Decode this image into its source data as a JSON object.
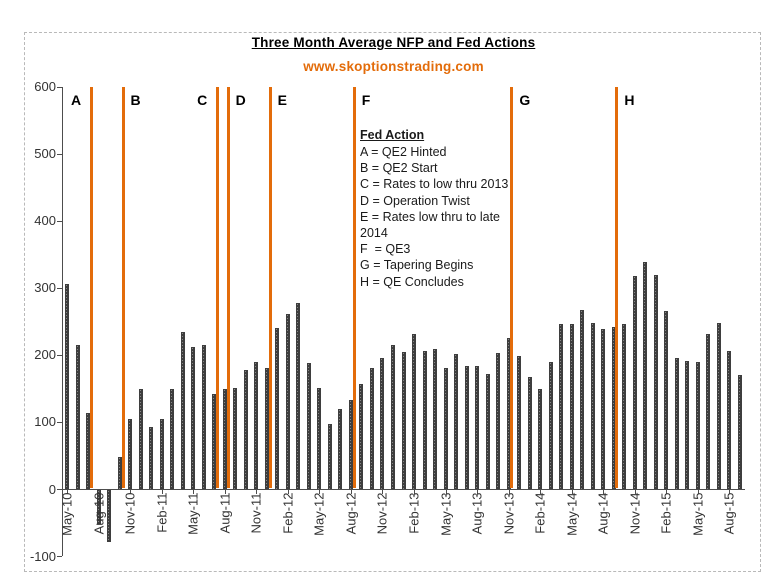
{
  "title": "Three Month Average NFP and Fed Actions",
  "subtitle": "www.skoptionstrading.com",
  "colors": {
    "accent_orange": "#e36c0a",
    "bar_fill": "#3e3e3e",
    "axis": "#4d4d4d",
    "frame_border": "#b9b9b9",
    "text": "#333333"
  },
  "chart_data": {
    "type": "bar",
    "title": "Three Month Average NFP and Fed Actions",
    "subtitle": "www.skoptionstrading.com",
    "xlabel": "",
    "ylabel": "",
    "ylim": [
      -100,
      600
    ],
    "yticks": [
      600,
      500,
      400,
      300,
      200,
      100,
      0,
      -100
    ],
    "grid": false,
    "x_label_every": 3,
    "x": [
      "May-10",
      "Jun-10",
      "Jul-10",
      "Aug-10",
      "Sep-10",
      "Oct-10",
      "Nov-10",
      "Dec-10",
      "Jan-11",
      "Feb-11",
      "Mar-11",
      "Apr-11",
      "May-11",
      "Jun-11",
      "Jul-11",
      "Aug-11",
      "Sep-11",
      "Oct-11",
      "Nov-11",
      "Dec-11",
      "Jan-12",
      "Feb-12",
      "Mar-12",
      "Apr-12",
      "May-12",
      "Jun-12",
      "Jul-12",
      "Aug-12",
      "Sep-12",
      "Oct-12",
      "Nov-12",
      "Dec-12",
      "Jan-13",
      "Feb-13",
      "Mar-13",
      "Apr-13",
      "May-13",
      "Jun-13",
      "Jul-13",
      "Aug-13",
      "Sep-13",
      "Oct-13",
      "Nov-13",
      "Dec-13",
      "Jan-14",
      "Feb-14",
      "Mar-14",
      "Apr-14",
      "May-14",
      "Jun-14",
      "Jul-14",
      "Aug-14",
      "Sep-14",
      "Oct-14",
      "Nov-14",
      "Dec-14",
      "Jan-15",
      "Feb-15",
      "Mar-15",
      "Apr-15",
      "May-15",
      "Jun-15",
      "Jul-15",
      "Aug-15",
      "Sep-15"
    ],
    "values": [
      305,
      215,
      113,
      -50,
      -78,
      47,
      105,
      149,
      93,
      104,
      149,
      234,
      212,
      215,
      142,
      149,
      151,
      178,
      190,
      180,
      240,
      261,
      277,
      188,
      151,
      97,
      119,
      133,
      157,
      180,
      196,
      215,
      204,
      231,
      206,
      209,
      180,
      201,
      183,
      184,
      172,
      202,
      225,
      198,
      167,
      149,
      190,
      246,
      246,
      267,
      247,
      239,
      241,
      246,
      318,
      339,
      319,
      265,
      195,
      191,
      190,
      231,
      247,
      205,
      170
    ],
    "fed_actions": [
      {
        "letter": "A",
        "after_slot": 3,
        "label_side": "left",
        "meaning": "QE2 Hinted"
      },
      {
        "letter": "B",
        "after_slot": 6,
        "label_side": "right",
        "meaning": "QE2 Start"
      },
      {
        "letter": "C",
        "after_slot": 15,
        "label_side": "left",
        "meaning": "Rates to low thru 2013"
      },
      {
        "letter": "D",
        "after_slot": 16,
        "label_side": "right",
        "meaning": "Operation Twist"
      },
      {
        "letter": "E",
        "after_slot": 20,
        "label_side": "right",
        "meaning": "Rates low thru to late 2014"
      },
      {
        "letter": "F",
        "after_slot": 28,
        "label_side": "right",
        "meaning": "QE3"
      },
      {
        "letter": "G",
        "after_slot": 43,
        "label_side": "right",
        "meaning": "Tapering Begins"
      },
      {
        "letter": "H",
        "after_slot": 53,
        "label_side": "right",
        "meaning": "QE Concludes"
      }
    ],
    "legend": {
      "title": "Fed Action",
      "lines": [
        "A = QE2 Hinted",
        "B = QE2 Start",
        "C = Rates to low thru 2013",
        "D = Operation Twist",
        "E = Rates low thru to late",
        "2014",
        "F  = QE3",
        "G = Tapering Begins",
        "H = QE Concludes"
      ],
      "position": "inside-top-center"
    }
  }
}
